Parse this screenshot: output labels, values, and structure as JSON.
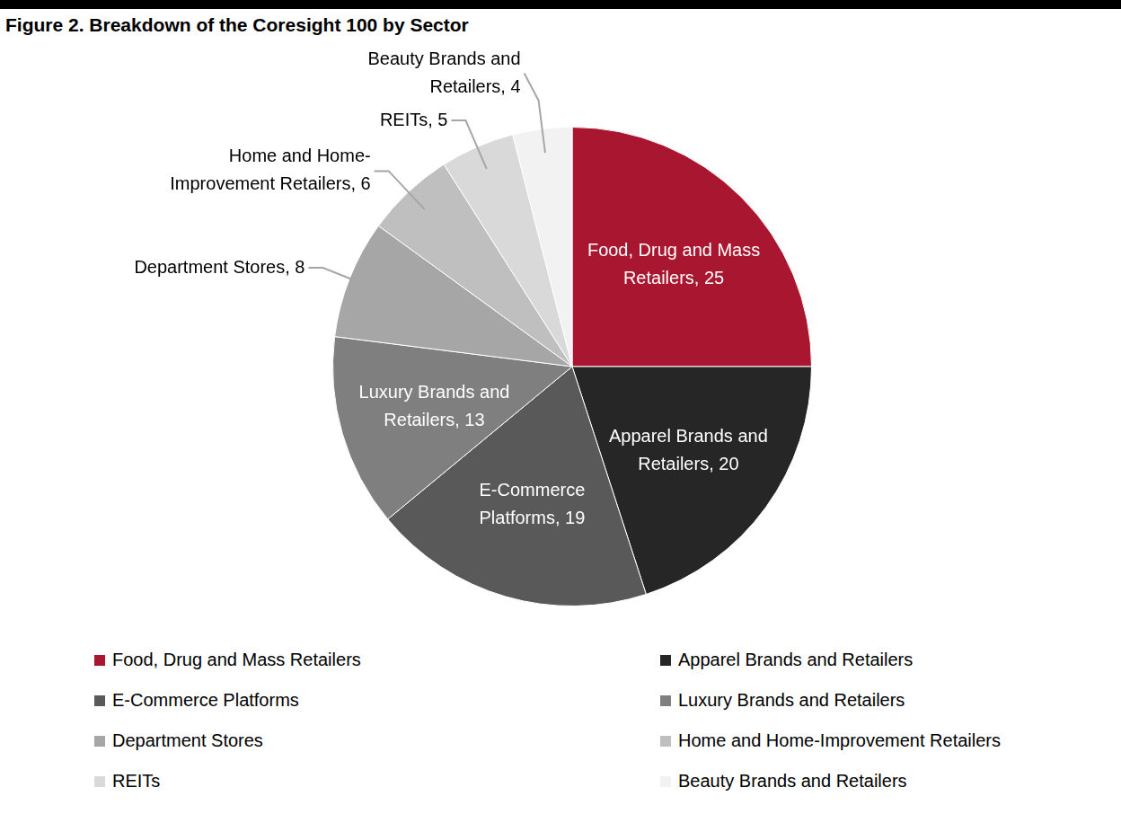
{
  "chart_data": {
    "type": "pie",
    "title": "Figure 2. Breakdown of the Coresight 100 by Sector",
    "categories": [
      "Food, Drug and Mass Retailers",
      "Apparel Brands and Retailers",
      "E-Commerce Platforms",
      "Luxury Brands and Retailers",
      "Department Stores",
      "Home and Home-Improvement Retailers",
      "REITs",
      "Beauty Brands and Retailers"
    ],
    "values": [
      25,
      20,
      19,
      13,
      8,
      6,
      5,
      4
    ],
    "value_labels": [
      "Food, Drug and Mass Retailers, 25",
      "Apparel Brands and Retailers, 20",
      "E-Commerce Platforms, 19",
      "Luxury Brands and Retailers, 13",
      "Department Stores, 8",
      "Home and Home-Improvement Retailers, 6",
      "REITs, 5",
      "Beauty Brands and Retailers, 4"
    ],
    "colors": [
      "#a8172f",
      "#262626",
      "#595959",
      "#7f7f7f",
      "#a6a6a6",
      "#bfbfbf",
      "#d9d9d9",
      "#f2f2f2"
    ],
    "legend": "bottom",
    "data_labels": true
  }
}
